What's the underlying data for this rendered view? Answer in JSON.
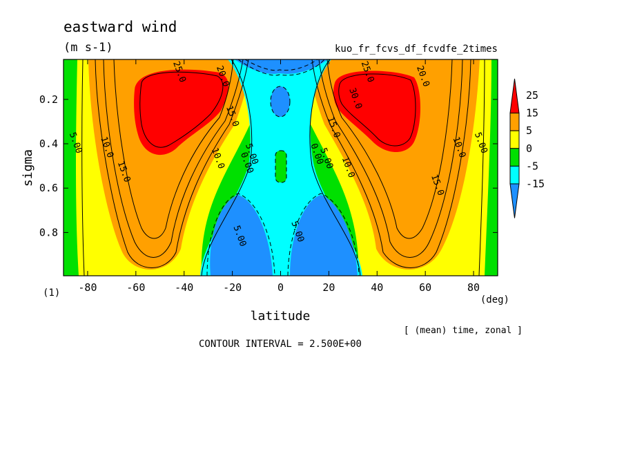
{
  "chart_data": {
    "type": "heatmap",
    "title": "eastward wind",
    "units": "(m s-1)",
    "experiment": "kuo_fr_fcvs_df_fcvdfe_2times",
    "xlabel": "latitude",
    "x_unit": "(deg)",
    "ylabel": "sigma",
    "y_unit": "(1)",
    "xlim": [
      -90,
      90
    ],
    "ylim": [
      0.02,
      0.995
    ],
    "y_inverted": true,
    "x_ticks": [
      -80,
      -60,
      -40,
      -20,
      0,
      20,
      40,
      60,
      80
    ],
    "y_ticks": [
      0.2,
      0.4,
      0.6,
      0.8
    ],
    "x_tick_labels": [
      "-80",
      "-60",
      "-40",
      "-20",
      "0",
      "20",
      "40",
      "60",
      "80"
    ],
    "y_tick_labels": [
      "0.2",
      "0.4",
      "0.6",
      "0.8"
    ],
    "averaging_note": "[ (mean) time, zonal ]",
    "contour_interval_text": "CONTOUR INTERVAL = 2.500E+00",
    "contour_interval": 2.5,
    "colorbar": {
      "levels": [
        -15,
        -5,
        0,
        5,
        15,
        25
      ],
      "labels": [
        "25",
        "15",
        "5",
        "0",
        "-5",
        "-15"
      ],
      "colors": [
        "#1e90ff",
        "#00ffff",
        "#00e000",
        "#ffff00",
        "#ffa000",
        "#ff0000"
      ]
    },
    "contour_labels": [
      {
        "text": "25.0",
        "lat": -43,
        "sigma": 0.08
      },
      {
        "text": "20.0",
        "lat": -25,
        "sigma": 0.1
      },
      {
        "text": "15.0",
        "lat": -21,
        "sigma": 0.28
      },
      {
        "text": "10.0",
        "lat": -27,
        "sigma": 0.47
      },
      {
        "text": "5.00",
        "lat": -13,
        "sigma": 0.45
      },
      {
        "text": "0.00",
        "lat": -15,
        "sigma": 0.49
      },
      {
        "text": "5.00",
        "lat": -86,
        "sigma": 0.4
      },
      {
        "text": "10.0",
        "lat": -73,
        "sigma": 0.42
      },
      {
        "text": "15.0",
        "lat": -66,
        "sigma": 0.53
      },
      {
        "text": "5.00",
        "lat": -18,
        "sigma": 0.82
      },
      {
        "text": "0.00",
        "lat": 14,
        "sigma": 0.45
      },
      {
        "text": "5.00",
        "lat": 18,
        "sigma": 0.47
      },
      {
        "text": "10.0",
        "lat": 27,
        "sigma": 0.51
      },
      {
        "text": "15.0",
        "lat": 21,
        "sigma": 0.33
      },
      {
        "text": "30.0",
        "lat": 30,
        "sigma": 0.2
      },
      {
        "text": "25.0",
        "lat": 35,
        "sigma": 0.08
      },
      {
        "text": "20.0",
        "lat": 58,
        "sigma": 0.1
      },
      {
        "text": "15.0",
        "lat": 64,
        "sigma": 0.59
      },
      {
        "text": "10.0",
        "lat": 73,
        "sigma": 0.42
      },
      {
        "text": "5.00",
        "lat": 82,
        "sigma": 0.4
      },
      {
        "text": "5.00",
        "lat": 6,
        "sigma": 0.8
      }
    ]
  }
}
